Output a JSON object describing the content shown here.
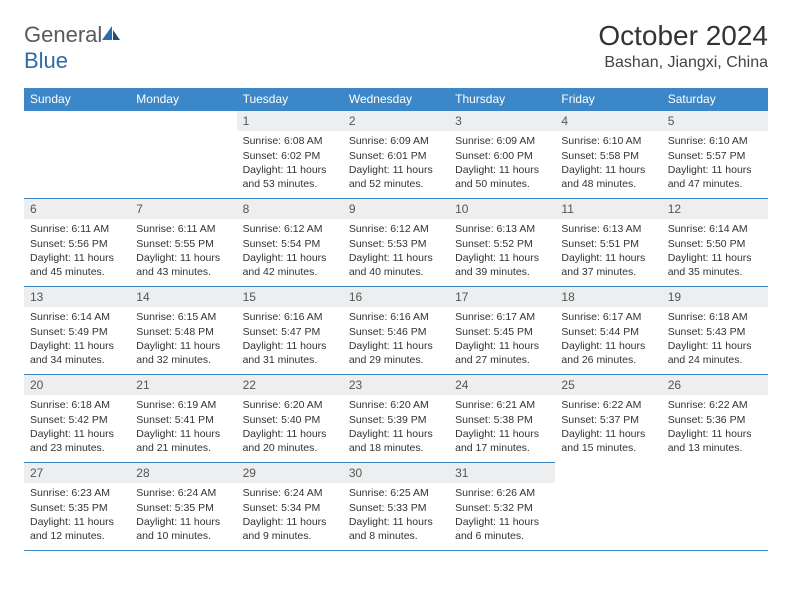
{
  "logo": {
    "word1": "General",
    "word2": "Blue"
  },
  "title": "October 2024",
  "location": "Bashan, Jiangxi, China",
  "colors": {
    "header_bg": "#3b87c8",
    "header_fg": "#ffffff",
    "border": "#3b87c8",
    "daynum_bg": "#eceef0",
    "logo_gray": "#5a5a5a",
    "logo_blue": "#2d6ca8"
  },
  "weekdays": [
    "Sunday",
    "Monday",
    "Tuesday",
    "Wednesday",
    "Thursday",
    "Friday",
    "Saturday"
  ],
  "weeks": [
    [
      null,
      null,
      {
        "n": "1",
        "sr": "6:08 AM",
        "ss": "6:02 PM",
        "dl": "11 hours and 53 minutes."
      },
      {
        "n": "2",
        "sr": "6:09 AM",
        "ss": "6:01 PM",
        "dl": "11 hours and 52 minutes."
      },
      {
        "n": "3",
        "sr": "6:09 AM",
        "ss": "6:00 PM",
        "dl": "11 hours and 50 minutes."
      },
      {
        "n": "4",
        "sr": "6:10 AM",
        "ss": "5:58 PM",
        "dl": "11 hours and 48 minutes."
      },
      {
        "n": "5",
        "sr": "6:10 AM",
        "ss": "5:57 PM",
        "dl": "11 hours and 47 minutes."
      }
    ],
    [
      {
        "n": "6",
        "sr": "6:11 AM",
        "ss": "5:56 PM",
        "dl": "11 hours and 45 minutes."
      },
      {
        "n": "7",
        "sr": "6:11 AM",
        "ss": "5:55 PM",
        "dl": "11 hours and 43 minutes."
      },
      {
        "n": "8",
        "sr": "6:12 AM",
        "ss": "5:54 PM",
        "dl": "11 hours and 42 minutes."
      },
      {
        "n": "9",
        "sr": "6:12 AM",
        "ss": "5:53 PM",
        "dl": "11 hours and 40 minutes."
      },
      {
        "n": "10",
        "sr": "6:13 AM",
        "ss": "5:52 PM",
        "dl": "11 hours and 39 minutes."
      },
      {
        "n": "11",
        "sr": "6:13 AM",
        "ss": "5:51 PM",
        "dl": "11 hours and 37 minutes."
      },
      {
        "n": "12",
        "sr": "6:14 AM",
        "ss": "5:50 PM",
        "dl": "11 hours and 35 minutes."
      }
    ],
    [
      {
        "n": "13",
        "sr": "6:14 AM",
        "ss": "5:49 PM",
        "dl": "11 hours and 34 minutes."
      },
      {
        "n": "14",
        "sr": "6:15 AM",
        "ss": "5:48 PM",
        "dl": "11 hours and 32 minutes."
      },
      {
        "n": "15",
        "sr": "6:16 AM",
        "ss": "5:47 PM",
        "dl": "11 hours and 31 minutes."
      },
      {
        "n": "16",
        "sr": "6:16 AM",
        "ss": "5:46 PM",
        "dl": "11 hours and 29 minutes."
      },
      {
        "n": "17",
        "sr": "6:17 AM",
        "ss": "5:45 PM",
        "dl": "11 hours and 27 minutes."
      },
      {
        "n": "18",
        "sr": "6:17 AM",
        "ss": "5:44 PM",
        "dl": "11 hours and 26 minutes."
      },
      {
        "n": "19",
        "sr": "6:18 AM",
        "ss": "5:43 PM",
        "dl": "11 hours and 24 minutes."
      }
    ],
    [
      {
        "n": "20",
        "sr": "6:18 AM",
        "ss": "5:42 PM",
        "dl": "11 hours and 23 minutes."
      },
      {
        "n": "21",
        "sr": "6:19 AM",
        "ss": "5:41 PM",
        "dl": "11 hours and 21 minutes."
      },
      {
        "n": "22",
        "sr": "6:20 AM",
        "ss": "5:40 PM",
        "dl": "11 hours and 20 minutes."
      },
      {
        "n": "23",
        "sr": "6:20 AM",
        "ss": "5:39 PM",
        "dl": "11 hours and 18 minutes."
      },
      {
        "n": "24",
        "sr": "6:21 AM",
        "ss": "5:38 PM",
        "dl": "11 hours and 17 minutes."
      },
      {
        "n": "25",
        "sr": "6:22 AM",
        "ss": "5:37 PM",
        "dl": "11 hours and 15 minutes."
      },
      {
        "n": "26",
        "sr": "6:22 AM",
        "ss": "5:36 PM",
        "dl": "11 hours and 13 minutes."
      }
    ],
    [
      {
        "n": "27",
        "sr": "6:23 AM",
        "ss": "5:35 PM",
        "dl": "11 hours and 12 minutes."
      },
      {
        "n": "28",
        "sr": "6:24 AM",
        "ss": "5:35 PM",
        "dl": "11 hours and 10 minutes."
      },
      {
        "n": "29",
        "sr": "6:24 AM",
        "ss": "5:34 PM",
        "dl": "11 hours and 9 minutes."
      },
      {
        "n": "30",
        "sr": "6:25 AM",
        "ss": "5:33 PM",
        "dl": "11 hours and 8 minutes."
      },
      {
        "n": "31",
        "sr": "6:26 AM",
        "ss": "5:32 PM",
        "dl": "11 hours and 6 minutes."
      },
      null,
      null
    ]
  ],
  "labels": {
    "sunrise": "Sunrise:",
    "sunset": "Sunset:",
    "daylight": "Daylight:"
  }
}
